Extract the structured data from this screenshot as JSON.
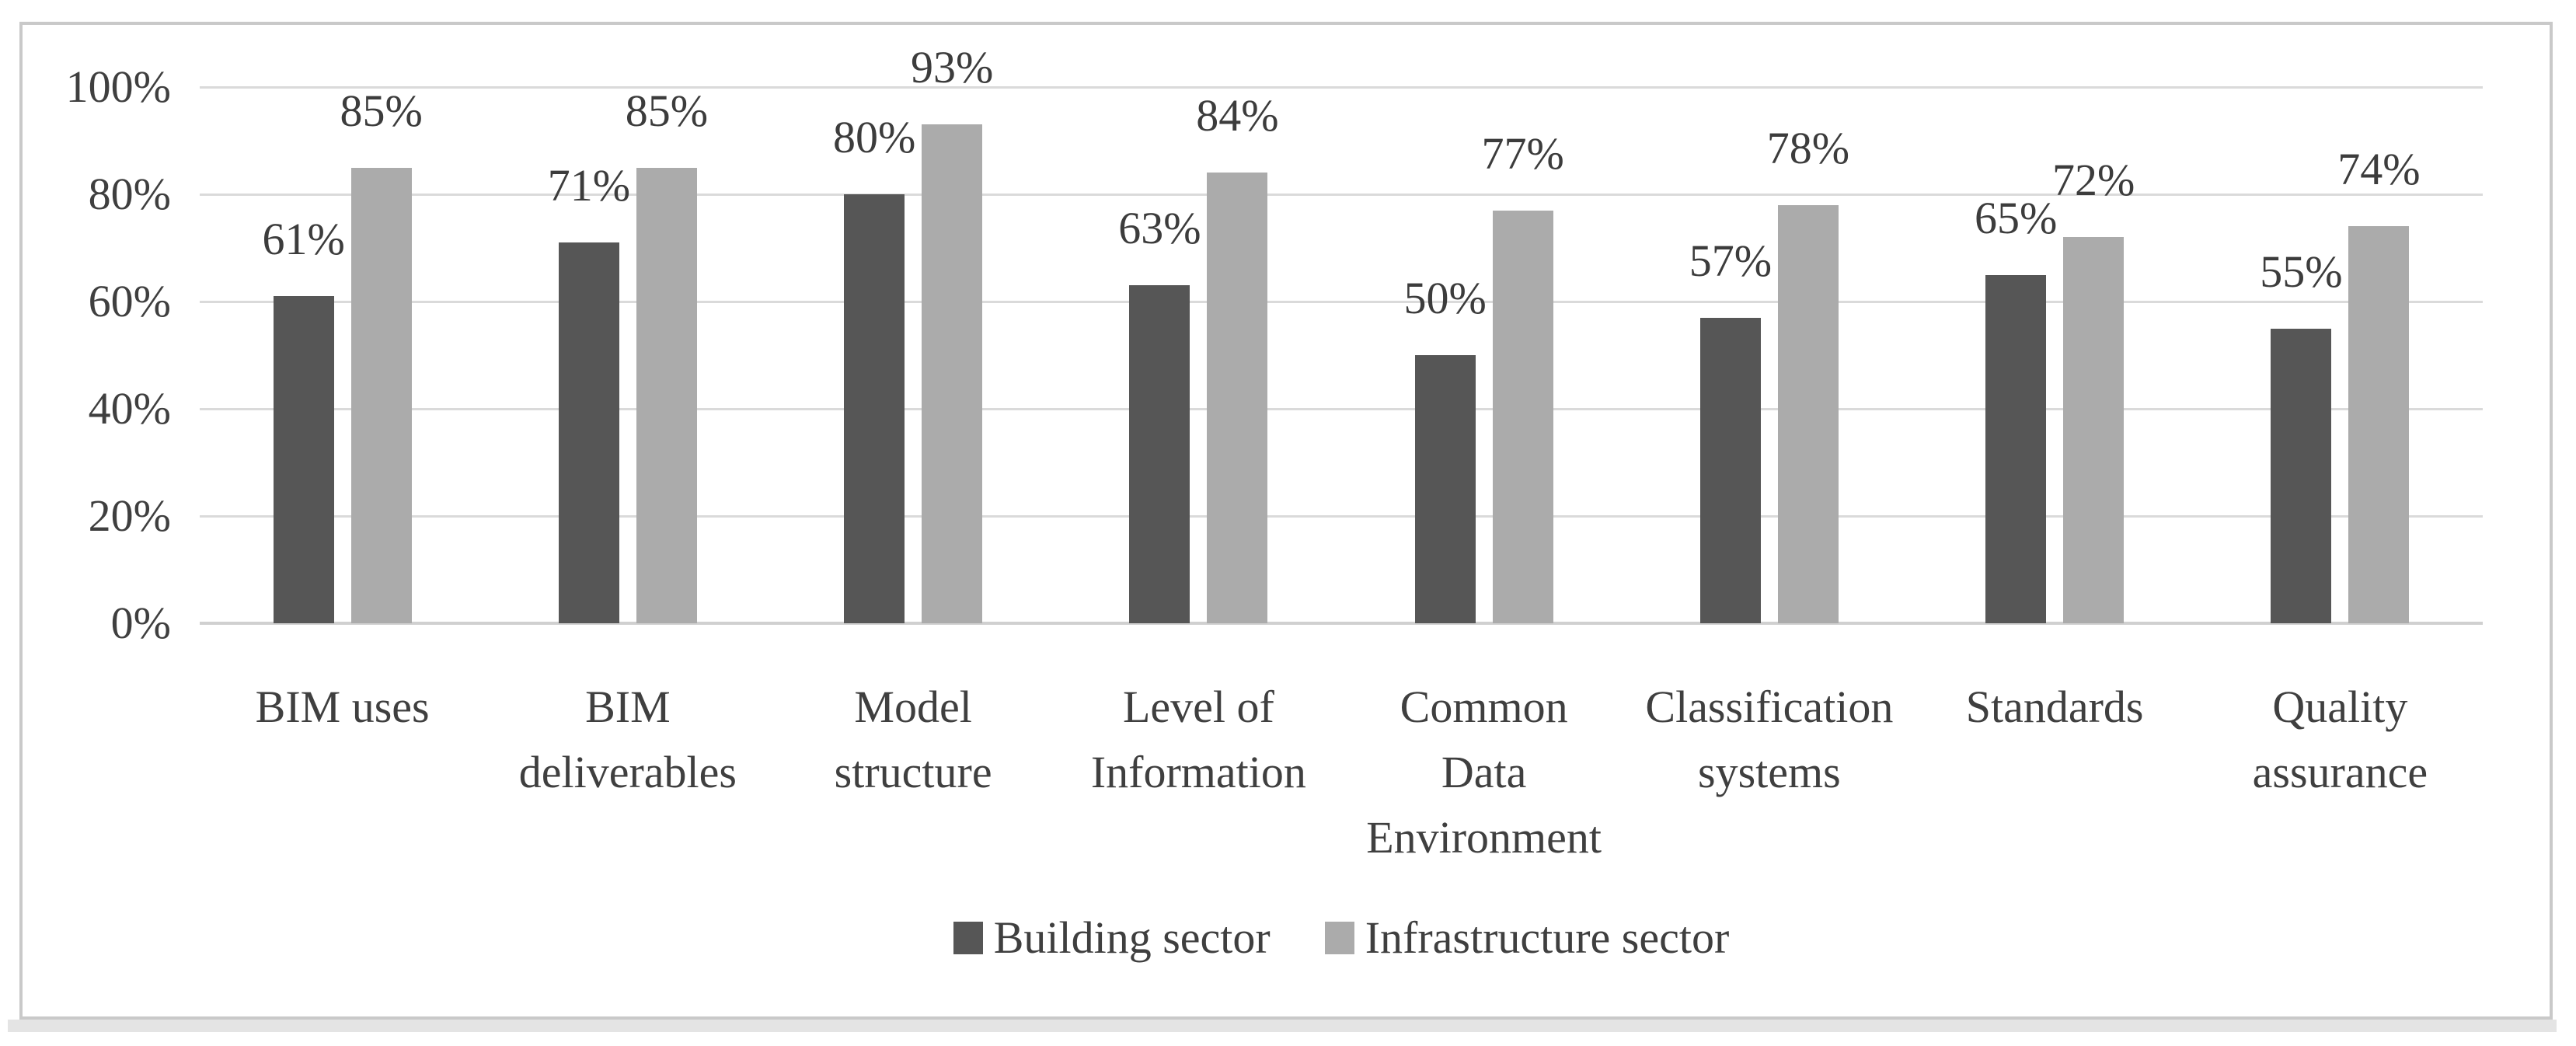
{
  "chart_data": {
    "type": "bar",
    "title": "",
    "xlabel": "",
    "ylabel": "",
    "categories": [
      "BIM uses",
      "BIM\ndeliverables",
      "Model\nstructure",
      "Level of\nInformation",
      "Common\nData\nEnvironment",
      "Classification\nsystems",
      "Standards",
      "Quality\nassurance"
    ],
    "series": [
      {
        "name": "Building sector",
        "color": "#565656",
        "values": [
          61,
          71,
          80,
          63,
          50,
          57,
          65,
          55
        ],
        "labels": [
          "61%",
          "71%",
          "80%",
          "63%",
          "50%",
          "57%",
          "65%",
          "55%"
        ]
      },
      {
        "name": "Infrastructure sector",
        "color": "#ababab",
        "values": [
          85,
          85,
          93,
          84,
          77,
          78,
          72,
          74
        ],
        "labels": [
          "85%",
          "85%",
          "93%",
          "84%",
          "77%",
          "78%",
          "72%",
          "74%"
        ]
      }
    ],
    "ylim": [
      0,
      100
    ],
    "yticks": [
      {
        "label": "0%",
        "value": 0
      },
      {
        "label": "20%",
        "value": 20
      },
      {
        "label": "40%",
        "value": 40
      },
      {
        "label": "60%",
        "value": 60
      },
      {
        "label": "80%",
        "value": 80
      },
      {
        "label": "100%",
        "value": 100
      }
    ],
    "grid": true,
    "legend_position": "bottom",
    "colors": {
      "gridline": "#dadada",
      "axis_line": "#d0d0d0",
      "text": "#3f3f3f",
      "frame_border": "#c9c9c9",
      "shadow_strip": "#e4e4e4"
    }
  }
}
